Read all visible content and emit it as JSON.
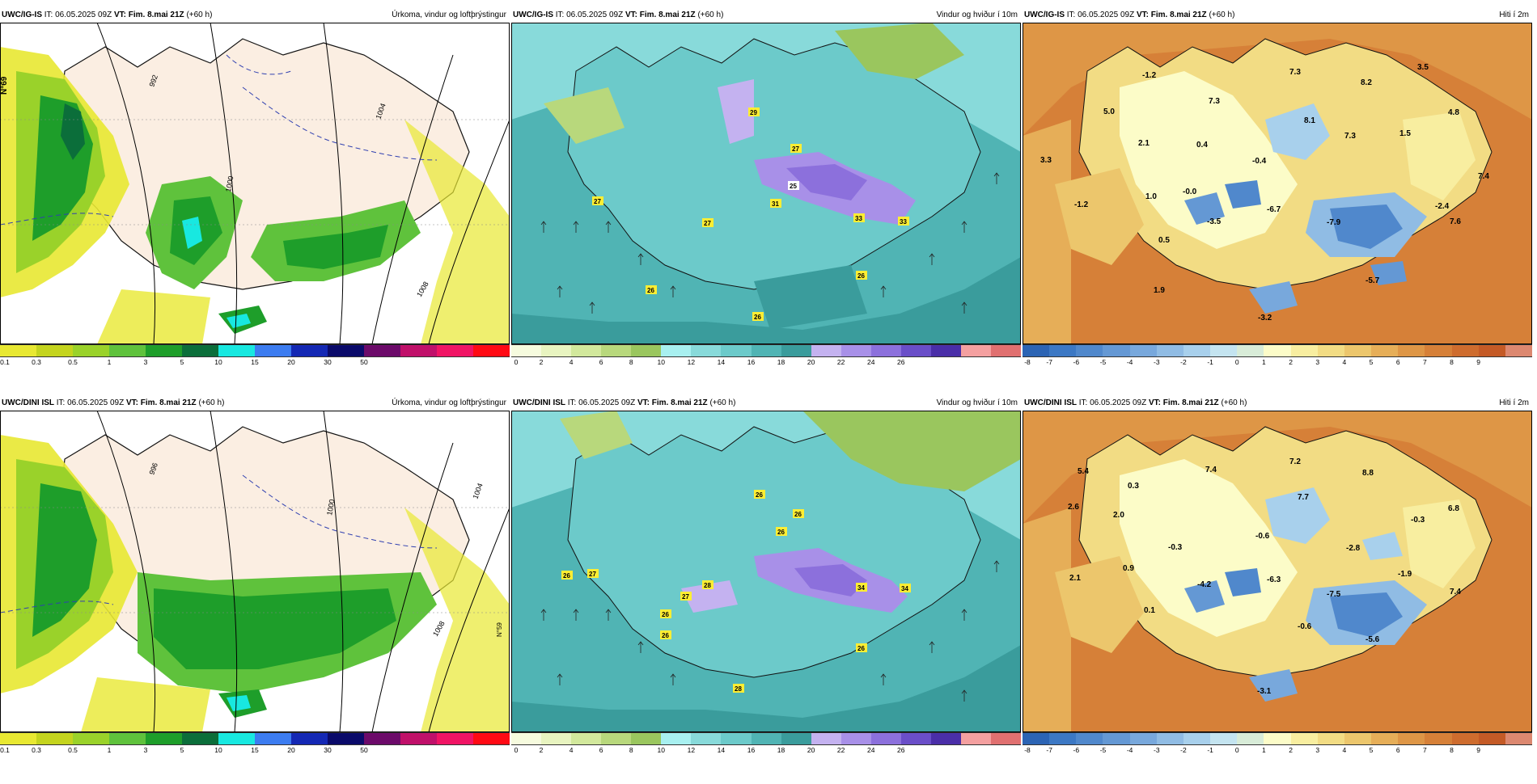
{
  "rows": [
    {
      "panels": [
        {
          "model": "UWC/IG-IS",
          "run_label": "IT:",
          "run": "06.05.2025 09Z",
          "valid_label": "VT:",
          "valid": "Fim. 8.mai 21Z",
          "lead": "(+60 h)",
          "field": "Úrkoma, vindur og loftþrýstingur"
        },
        {
          "model": "UWC/IG-IS",
          "run_label": "IT:",
          "run": "06.05.2025 09Z",
          "valid_label": "VT:",
          "valid": "Fim. 8.mai 21Z",
          "lead": "(+60 h)",
          "field": "Vindur og hviður í 10m"
        },
        {
          "model": "UWC/IG-IS",
          "run_label": "IT:",
          "run": "06.05.2025 09Z",
          "valid_label": "VT:",
          "valid": "Fim. 8.mai 21Z",
          "lead": "(+60 h)",
          "field": "Hiti í 2m"
        }
      ]
    },
    {
      "panels": [
        {
          "model": "UWC/DINI ISL",
          "run_label": "IT:",
          "run": "06.05.2025 09Z",
          "valid_label": "VT:",
          "valid": "Fim. 8.mai 21Z",
          "lead": "(+60 h)",
          "field": "Úrkoma, vindur og loftþrýstingur"
        },
        {
          "model": "UWC/DINI ISL",
          "run_label": "IT:",
          "run": "06.05.2025 09Z",
          "valid_label": "VT:",
          "valid": "Fim. 8.mai 21Z",
          "lead": "(+60 h)",
          "field": "Vindur og hviður í 10m"
        },
        {
          "model": "UWC/DINI ISL",
          "run_label": "IT:",
          "run": "06.05.2025 09Z",
          "valid_label": "VT:",
          "valid": "Fim. 8.mai 21Z",
          "lead": "(+60 h)",
          "field": "Hiti í 2m"
        }
      ]
    }
  ],
  "scales": {
    "precip": {
      "colors": [
        "#e8e832",
        "#c4d41e",
        "#9ad22a",
        "#5fc23c",
        "#1e9e2a",
        "#0b6e3a",
        "#18e8e0",
        "#3c7cf0",
        "#1428b4",
        "#0a0a6a",
        "#6c0a6a",
        "#c0106a",
        "#f01464",
        "#ff0a14"
      ],
      "ticks": [
        "0.1",
        "0.3",
        "0.5",
        "1",
        "3",
        "5",
        "10",
        "15",
        "20",
        "30",
        "50"
      ]
    },
    "wind": {
      "colors": [
        "#f6fbde",
        "#e8f4c0",
        "#d2e89c",
        "#b8d87c",
        "#9ac65e",
        "#a8f0f0",
        "#88dada",
        "#6ccaca",
        "#50b4b4",
        "#3a9c9c",
        "#c4b2f0",
        "#a890e8",
        "#8c70dc",
        "#6a4ec8",
        "#4a2ea8",
        "#f4a0a0",
        "#e07070"
      ],
      "ticks": [
        "0",
        "2",
        "4",
        "6",
        "8",
        "10",
        "12",
        "14",
        "16",
        "18",
        "20",
        "22",
        "24",
        "26"
      ]
    },
    "temp": {
      "colors": [
        "#2c64b4",
        "#3c78c4",
        "#5088cc",
        "#6498d4",
        "#78a8dc",
        "#90bce4",
        "#a8d0ec",
        "#c4e4f0",
        "#d8ecd8",
        "#fcfcc8",
        "#f8eea0",
        "#f2dc84",
        "#ecc66c",
        "#e6ae58",
        "#de9646",
        "#d68038",
        "#ce6c2e",
        "#c45a26",
        "#dc8870"
      ],
      "ticks": [
        "-8",
        "-7",
        "-6",
        "-5",
        "-4",
        "-3",
        "-2",
        "-1",
        "0",
        "1",
        "2",
        "3",
        "4",
        "5",
        "6",
        "7",
        "8",
        "9"
      ]
    }
  },
  "wind_labels_top": [
    "29",
    "27",
    "27",
    "31",
    "27",
    "33",
    "33",
    "26",
    "26",
    "26",
    "25",
    "27"
  ],
  "wind_labels_bottom": [
    "26",
    "26",
    "26",
    "26",
    "27",
    "28",
    "27",
    "34",
    "34",
    "26",
    "26",
    "26",
    "28"
  ],
  "temp_labels_top": [
    "-1.2",
    "7.3",
    "8.2",
    "3.5",
    "5.0",
    "7.3",
    "8.1",
    "4.8",
    "2.1",
    "0.4",
    "-0.4",
    "7.3",
    "1.5",
    "3.3",
    "-0.0",
    "7.4",
    "1.0",
    "-1.2",
    "-3.5",
    "-6.7",
    "-2.4",
    "7.6",
    "0.5",
    "-7.9",
    "-5.7",
    "1.9",
    "-3.2"
  ],
  "temp_labels_bottom": [
    "5.4",
    "7.2",
    "8.8",
    "0.3",
    "7.4",
    "7.7",
    "2.6",
    "2.0",
    "-0.3",
    "6.8",
    "-0.6",
    "-0.3",
    "-2.8",
    "0.9",
    "-1.9",
    "2.1",
    "-4.2",
    "-6.3",
    "-7.5",
    "7.4",
    "0.1",
    "-0.6",
    "-5.6",
    "-3.1"
  ],
  "pressure_labels": [
    "992",
    "996",
    "1000",
    "1004",
    "1008"
  ],
  "lat_label": "N°69",
  "lat_label2": "N°59"
}
